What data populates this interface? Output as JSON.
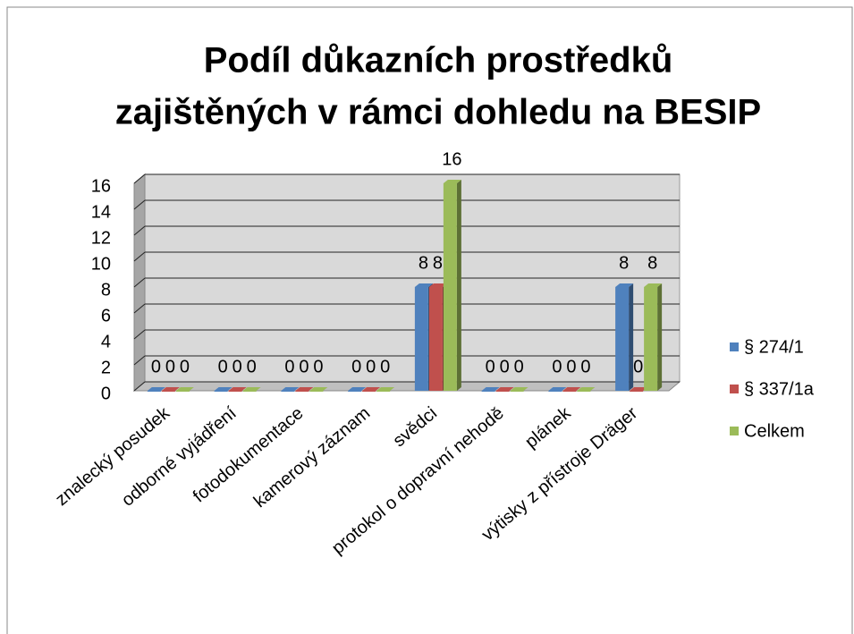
{
  "chart_data": {
    "type": "bar3d",
    "title": [
      "Podíl důkazních prostředků",
      "zajištěných v rámci dohledu na BESIP"
    ],
    "categories": [
      "znalecký posudek",
      "odborné vyjádření",
      "fotodokumentace",
      "kamerový záznam",
      "svědci",
      "protokol o dopravní nehodě",
      "plánek",
      "výtisky z přístroje Dräger"
    ],
    "series": [
      {
        "name": "§ 274/1",
        "color": "#4f81bd",
        "values": [
          0,
          0,
          0,
          0,
          8,
          0,
          0,
          8
        ]
      },
      {
        "name": "§ 337/1a",
        "color": "#c0504d",
        "values": [
          0,
          0,
          0,
          0,
          8,
          0,
          0,
          0
        ]
      },
      {
        "name": "Celkem",
        "color": "#9bbb59",
        "values": [
          0,
          0,
          0,
          0,
          16,
          0,
          0,
          8
        ]
      }
    ],
    "ylim": [
      0,
      16
    ],
    "yticks": [
      0,
      2,
      4,
      6,
      8,
      10,
      12,
      14,
      16
    ],
    "grid": true,
    "legend": "right"
  }
}
